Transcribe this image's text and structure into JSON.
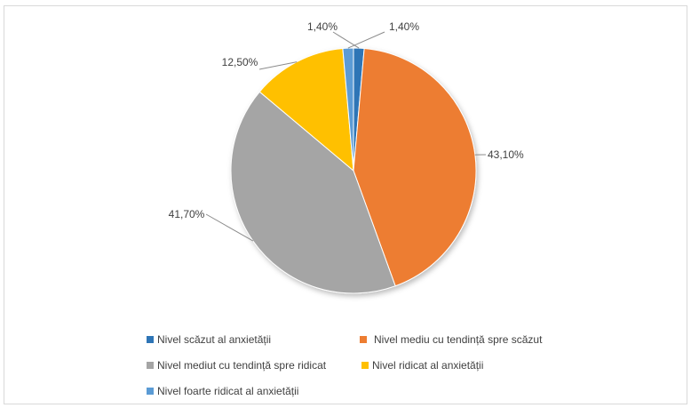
{
  "chart_data": {
    "type": "pie",
    "title": "",
    "categories": [
      "Nivel scăzut al anxietății",
      "Nivel mediu cu tendință spre scăzut",
      "Nivel mediut cu tendință spre ridicat",
      "Nivel ridicat al anxietății",
      "Nivel foarte ridicat al anxietății"
    ],
    "values": [
      1.4,
      43.1,
      41.7,
      12.5,
      1.4
    ],
    "data_labels": [
      "1,40%",
      "43,10%",
      "41,70%",
      "12,50%",
      "1,40%"
    ],
    "colors": [
      "#2E75B6",
      "#ED7D31",
      "#A5A5A5",
      "#FFC000",
      "#5B9BD5"
    ],
    "legend_position": "bottom"
  }
}
